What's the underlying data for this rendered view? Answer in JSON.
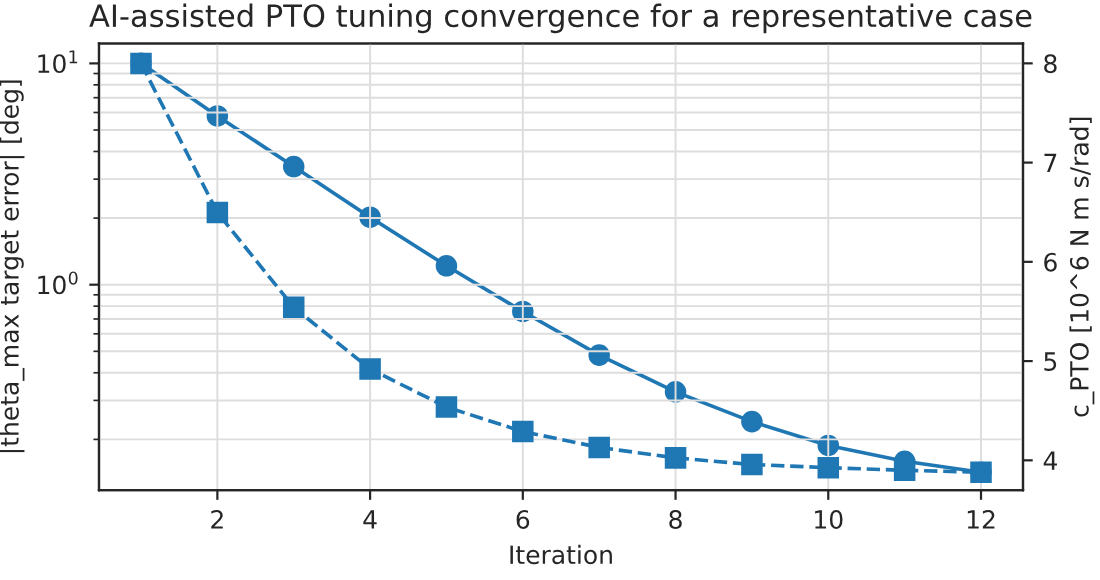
{
  "chart_data": {
    "type": "line",
    "title": "AI-assisted PTO tuning convergence for a representative case",
    "xlabel": "Iteration",
    "ylabel": "|theta_max target error| [deg]",
    "y2label": "c_PTO [10^6 N m s/rad]",
    "x": [
      1,
      2,
      3,
      4,
      5,
      6,
      7,
      8,
      9,
      10,
      11,
      12
    ],
    "series": [
      {
        "color": "#1f77b4",
        "marker": "square",
        "line_style": "dashed",
        "values": [
          10,
          2.12,
          0.79,
          0.416,
          0.28,
          0.217,
          0.184,
          0.165,
          0.154,
          0.149,
          0.145,
          0.142
        ]
      },
      {
        "color": "#1f77b4",
        "marker": "circle",
        "line_style": "solid",
        "axis": "y2",
        "values": [
          8.0,
          7.47,
          6.96,
          6.45,
          5.96,
          5.5,
          5.06,
          4.69,
          4.39,
          4.15,
          3.99,
          3.88
        ]
      }
    ],
    "log": "y",
    "xlim": [
      0.45,
      12.55
    ],
    "xticks": [
      2,
      4,
      6,
      8,
      10,
      12
    ],
    "ylim": [
      0.118,
      12.3
    ],
    "yticks": [
      {
        "value": 1,
        "label": "10$^{0}$"
      },
      {
        "value": 10,
        "label": "10$^{1}$"
      }
    ],
    "y2lim": [
      3.7,
      8.2
    ],
    "y2ticks": [
      4,
      5,
      6,
      7,
      8
    ],
    "grid": true
  }
}
